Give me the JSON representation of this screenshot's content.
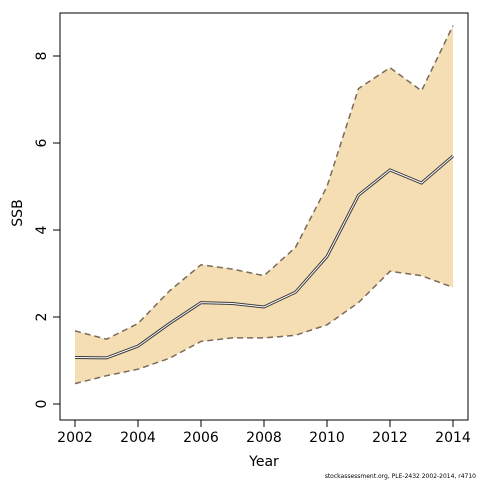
{
  "chart_data": {
    "type": "area",
    "title": "",
    "xlabel": "Year",
    "ylabel": "SSB",
    "xlim": [
      2002,
      2014
    ],
    "ylim": [
      0,
      8.7
    ],
    "x_ticks": [
      2002,
      2004,
      2006,
      2008,
      2010,
      2012,
      2014
    ],
    "x_tick_labels": [
      "2002",
      "2004",
      "2006",
      "2008",
      "2010",
      "2012",
      "2014"
    ],
    "y_ticks": [
      0,
      2,
      4,
      6,
      8
    ],
    "y_tick_labels": [
      "0",
      "2",
      "4",
      "6",
      "8"
    ],
    "grid": false,
    "x": [
      2002,
      2003,
      2004,
      2005,
      2006,
      2007,
      2008,
      2009,
      2010,
      2011,
      2012,
      2013,
      2014
    ],
    "series": [
      {
        "values": [
          1.07,
          1.06,
          1.33,
          1.85,
          2.33,
          2.31,
          2.23,
          2.57,
          3.39,
          4.8,
          5.38,
          5.08,
          5.7
        ]
      },
      {
        "values": [
          0.47,
          0.65,
          0.8,
          1.05,
          1.44,
          1.52,
          1.52,
          1.58,
          1.82,
          2.33,
          3.05,
          2.95,
          2.68
        ]
      },
      {
        "values": [
          1.68,
          1.49,
          1.85,
          2.6,
          3.2,
          3.1,
          2.95,
          3.6,
          5.0,
          7.25,
          7.73,
          7.2,
          8.7
        ]
      }
    ],
    "colors": {
      "band_fill": "#f5deb3",
      "line": "#3a3a3a",
      "line_highlight": "#ffffff",
      "bounds": "#7a6a5a"
    }
  },
  "footer": {
    "text": "stockassessment.org,  PLE-2432  2002-2014, r4710"
  }
}
